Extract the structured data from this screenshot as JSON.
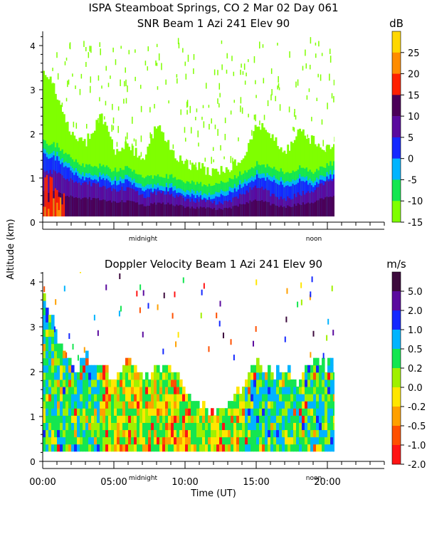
{
  "figure": {
    "title_line1": "ISPA Steamboat Springs, CO   2 Mar 02 Day 061",
    "shared_ylabel": "Altitude (km)",
    "shared_xlabel": "Time (UT)",
    "x_tick_labels": [
      "00:00",
      "05:00",
      "10:00",
      "15:00",
      "20:00"
    ],
    "marker_midnight": "midnight",
    "marker_noon": "noon"
  },
  "chart_data": [
    {
      "type": "heatmap",
      "title": "SNR Beam 1 Azi 241 Elev 90",
      "xlabel": "Time (UT)",
      "ylabel": "Altitude (km)",
      "xlim": [
        0,
        24
      ],
      "ylim": [
        0,
        4.25
      ],
      "y_ticks": [
        0,
        1,
        2,
        3,
        4
      ],
      "colorbar_unit": "dB",
      "colorbar_ticks": [
        "25",
        "20",
        "15",
        "10",
        "5",
        "0",
        "-5",
        "-10",
        "-15"
      ],
      "colorbar_colors": [
        "#ffd700",
        "#ff8c00",
        "#ff2000",
        "#4b0058",
        "#5a0a9e",
        "#1428ff",
        "#00b4ff",
        "#14e650",
        "#7fff00"
      ],
      "data_extent_hours": [
        0,
        20.8
      ],
      "profile_tops_km": {
        "green_top": [
          [
            0,
            3.4
          ],
          [
            1,
            2.7
          ],
          [
            2,
            1.8
          ],
          [
            3,
            1.7
          ],
          [
            4,
            2.3
          ],
          [
            5,
            1.5
          ],
          [
            6,
            1.6
          ],
          [
            7,
            1.3
          ],
          [
            8,
            2.1
          ],
          [
            9,
            1.5
          ],
          [
            10,
            1.2
          ],
          [
            11,
            1.1
          ],
          [
            12,
            1.0
          ],
          [
            13,
            1.1
          ],
          [
            14,
            1.3
          ],
          [
            15,
            2.1
          ],
          [
            16,
            1.8
          ],
          [
            17,
            1.5
          ],
          [
            18,
            1.9
          ],
          [
            19,
            1.7
          ],
          [
            20,
            1.5
          ],
          [
            20.8,
            1.9
          ]
        ],
        "blue_top": [
          [
            0,
            1.5
          ],
          [
            1,
            1.4
          ],
          [
            2,
            1.1
          ],
          [
            3,
            0.95
          ],
          [
            4,
            0.95
          ],
          [
            5,
            0.85
          ],
          [
            6,
            0.9
          ],
          [
            7,
            0.65
          ],
          [
            8,
            0.75
          ],
          [
            9,
            0.7
          ],
          [
            10,
            0.6
          ],
          [
            11,
            0.55
          ],
          [
            12,
            0.5
          ],
          [
            13,
            0.6
          ],
          [
            14,
            0.8
          ],
          [
            15,
            1.0
          ],
          [
            16,
            0.9
          ],
          [
            17,
            0.8
          ],
          [
            18,
            0.9
          ],
          [
            19,
            0.8
          ],
          [
            20,
            1.0
          ],
          [
            20.8,
            1.0
          ]
        ],
        "purple_top": [
          [
            0,
            1.0
          ],
          [
            1,
            1.0
          ],
          [
            2,
            0.8
          ],
          [
            3,
            0.75
          ],
          [
            4,
            0.7
          ],
          [
            5,
            0.6
          ],
          [
            6,
            0.65
          ],
          [
            7,
            0.45
          ],
          [
            8,
            0.55
          ],
          [
            9,
            0.5
          ],
          [
            10,
            0.4
          ],
          [
            11,
            0.35
          ],
          [
            12,
            0.3
          ],
          [
            13,
            0.35
          ],
          [
            14,
            0.5
          ],
          [
            15,
            0.7
          ],
          [
            16,
            0.5
          ],
          [
            17,
            0.4
          ],
          [
            18,
            0.5
          ],
          [
            19,
            0.6
          ],
          [
            20,
            0.8
          ],
          [
            20.8,
            0.8
          ]
        ]
      }
    },
    {
      "type": "heatmap",
      "title": "Doppler Velocity Beam 1 Azi 241 Elev 90",
      "xlabel": "Time (UT)",
      "ylabel": "Altitude (km)",
      "xlim": [
        0,
        24
      ],
      "ylim": [
        0,
        4.25
      ],
      "y_ticks": [
        0,
        1,
        2,
        3,
        4
      ],
      "colorbar_unit": "m/s",
      "colorbar_ticks": [
        "5.0",
        "2.0",
        "1.0",
        "0.5",
        "0.2",
        "0.0",
        "-0.2",
        "-0.5",
        "-1.0",
        "-2.0"
      ],
      "colorbar_colors": [
        "#3c0a3c",
        "#5a0a9e",
        "#1428ff",
        "#00b4ff",
        "#14e650",
        "#a0f000",
        "#ffe600",
        "#ffa000",
        "#ff5000",
        "#ff1414"
      ],
      "data_extent_hours": [
        0,
        20.8
      ],
      "profile_tops_km": {
        "signal_top": [
          [
            0,
            3.5
          ],
          [
            1,
            2.5
          ],
          [
            2,
            1.8
          ],
          [
            3,
            2.2
          ],
          [
            4,
            1.9
          ],
          [
            5,
            1.7
          ],
          [
            6,
            2.0
          ],
          [
            7,
            1.6
          ],
          [
            8,
            2.0
          ],
          [
            9,
            1.8
          ],
          [
            10,
            1.3
          ],
          [
            11,
            1.0
          ],
          [
            12,
            1.0
          ],
          [
            13,
            1.1
          ],
          [
            14,
            1.5
          ],
          [
            15,
            2.0
          ],
          [
            16,
            1.8
          ],
          [
            17,
            1.9
          ],
          [
            18,
            1.6
          ],
          [
            19,
            2.0
          ],
          [
            20,
            2.0
          ],
          [
            20.8,
            1.8
          ]
        ]
      }
    }
  ]
}
